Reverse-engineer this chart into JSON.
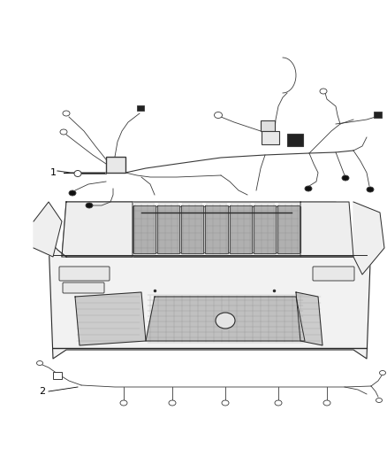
{
  "background_color": "#ffffff",
  "fig_width": 4.38,
  "fig_height": 5.33,
  "dpi": 100,
  "label_1": "1",
  "label_2": "2",
  "wiring_color": "#3a3a3a",
  "line_color": "#2a2a2a",
  "fill_light": "#f0f0f0",
  "fill_grille": "#c8c8c8",
  "fill_mesh": "#b8b8b8",
  "label_fontsize": 8
}
